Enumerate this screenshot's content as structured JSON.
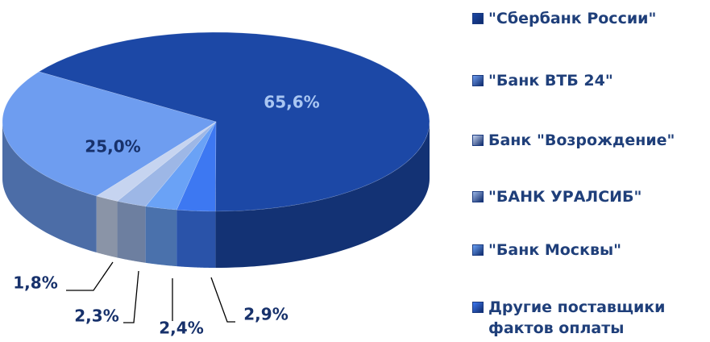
{
  "chart_data": {
    "type": "pie3d",
    "categories": [
      "\"Сбербанк России\"",
      "\"Банк ВТБ 24\"",
      "Банк \"Возрождение\"",
      "\"БАНК УРАЛСИБ\"",
      "\"Банк Москвы\"",
      "Другие поставщики фактов оплаты"
    ],
    "values": [
      65.6,
      25.0,
      1.8,
      2.3,
      2.4,
      2.9
    ],
    "value_labels": [
      "65,6%",
      "25,0%",
      "1,8%",
      "2,3%",
      "2,4%",
      "2,9%"
    ],
    "colors": [
      "#1c48a6",
      "#6e9df0",
      "#c6d4f0",
      "#9db7e6",
      "#6aa2f6",
      "#3d78f2"
    ],
    "legend": "right"
  }
}
